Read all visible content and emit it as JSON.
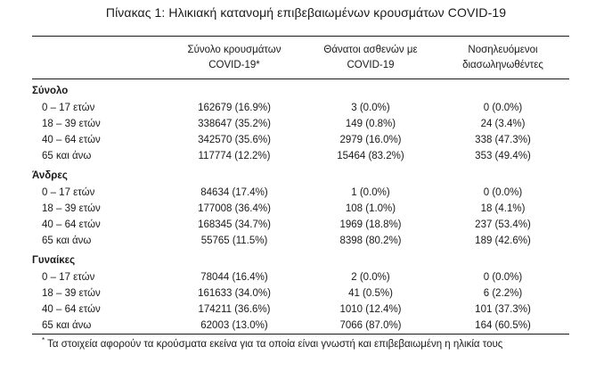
{
  "title": "Πίνακας 1: Ηλικιακή κατανομή επιβεβαιωμένων κρουσμάτων COVID-19",
  "headers": [
    "",
    "Σύνολο κρουσμάτων COVID-19*",
    "Θάνατοι ασθενών με COVID-19",
    "Νοσηλευόμενοι διασωληνωθέντες"
  ],
  "header_lines": [
    [
      "",
      ""
    ],
    [
      "Σύνολο κρουσμάτων",
      "COVID-19*"
    ],
    [
      "Θάνατοι ασθενών με",
      "COVID-19"
    ],
    [
      "Νοσηλευόμενοι",
      "διασωληνωθέντες"
    ]
  ],
  "groups": [
    {
      "name": "Σύνολο",
      "rows": [
        {
          "age": "0 – 17 ετών",
          "cases": "162679 (16.9%)",
          "deaths": "3 (0.0%)",
          "intubated": "0 (0.0%)"
        },
        {
          "age": "18 – 39 ετών",
          "cases": "338647 (35.2%)",
          "deaths": "149 (0.8%)",
          "intubated": "24 (3.4%)"
        },
        {
          "age": "40 – 64 ετών",
          "cases": "342570 (35.6%)",
          "deaths": "2979 (16.0%)",
          "intubated": "338 (47.3%)"
        },
        {
          "age": "65 και άνω",
          "cases": "117774 (12.2%)",
          "deaths": "15464 (83.2%)",
          "intubated": "353 (49.4%)"
        }
      ]
    },
    {
      "name": "Άνδρες",
      "rows": [
        {
          "age": "0 – 17 ετών",
          "cases": "84634 (17.4%)",
          "deaths": "1 (0.0%)",
          "intubated": "0 (0.0%)"
        },
        {
          "age": "18 – 39 ετών",
          "cases": "177008 (36.4%)",
          "deaths": "108 (1.0%)",
          "intubated": "18 (4.1%)"
        },
        {
          "age": "40 – 64 ετών",
          "cases": "168345 (34.7%)",
          "deaths": "1969 (18.8%)",
          "intubated": "237 (53.4%)"
        },
        {
          "age": "65 και άνω",
          "cases": "55765 (11.5%)",
          "deaths": "8398 (80.2%)",
          "intubated": "189 (42.6%)"
        }
      ]
    },
    {
      "name": "Γυναίκες",
      "rows": [
        {
          "age": "0 – 17 ετών",
          "cases": "78044 (16.4%)",
          "deaths": "2 (0.0%)",
          "intubated": "0 (0.0%)"
        },
        {
          "age": "18 – 39 ετών",
          "cases": "161633 (34.0%)",
          "deaths": "41 (0.5%)",
          "intubated": "6 (2.2%)"
        },
        {
          "age": "40 – 64 ετών",
          "cases": "174211 (36.6%)",
          "deaths": "1010 (12.4%)",
          "intubated": "101 (37.3%)"
        },
        {
          "age": "65 και άνω",
          "cases": "62003 (13.0%)",
          "deaths": "7066 (87.0%)",
          "intubated": "164 (60.5%)"
        }
      ]
    }
  ],
  "footnote": {
    "marker": "*",
    "text": "Τα στοιχεία αφορούν τα κρούσματα εκείνα για τα οποία είναι γνωστή και επιβεβαιωμένη η ηλικία τους"
  }
}
